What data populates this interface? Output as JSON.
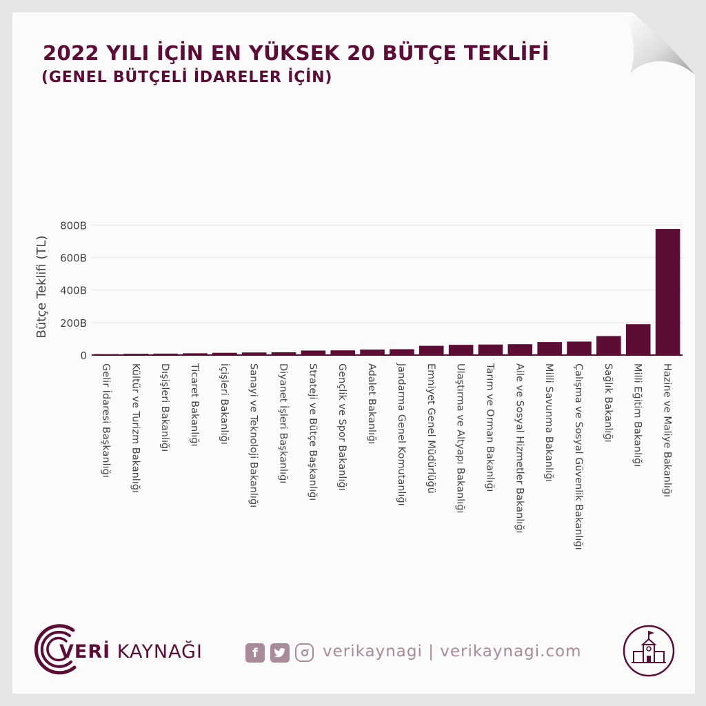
{
  "header": {
    "title": "2022 YILI İÇİN EN YÜKSEK 20 BÜTÇE TEKLİFİ",
    "subtitle": "(GENEL BÜTÇELİ İDARELER İÇİN)"
  },
  "footer": {
    "brand_bold": "VERİ",
    "brand_rest": " KAYNAĞI",
    "website": "verikaynagi | verikaynagi.com",
    "social_icons": [
      "facebook-icon",
      "twitter-icon",
      "instagram-icon"
    ]
  },
  "colors": {
    "bar": "#5c0c35",
    "accent": "#5c0c35",
    "muted": "#a98a9a",
    "grid": "#e6e6e6"
  },
  "chart_data": {
    "type": "bar",
    "ylabel": "Bütçe Teklifi (TL)",
    "xlabel": "",
    "ylim": [
      0,
      840
    ],
    "yticks": [
      0,
      200,
      400,
      600,
      800
    ],
    "ytick_labels": [
      "0",
      "200B",
      "400B",
      "600B",
      "800B"
    ],
    "grid": true,
    "categories": [
      "Gelir İdaresi Başkanlığı",
      "Kültür ve Turizm Bakanlığı",
      "Dışişleri Bakanlığı",
      "Ticaret Bakanlığı",
      "İçişleri Bakanlığı",
      "Sanayi ve Teknoloji Bakanlığı",
      "Diyanet İşleri Başkanlığı",
      "Strateji ve Bütçe Başkanlığı",
      "Gençlik ve Spor Bakanlığı",
      "Adalet Bakanlığı",
      "Jandarma Genel Komutanlığı",
      "Emniyet Genel Müdürlüğü",
      "Ulaştırma ve Altyapı Bakanlığı",
      "Tarım ve Orman Bakanlığı",
      "Aile ve Sosyal Hizmetler Bakanlığı",
      "Milli Savunma Bakanlığı",
      "Çalışma ve Sosyal Güvenlik Bakanlığı",
      "Sağlık Bakanlığı",
      "Milli Eğitim Bakanlığı",
      "Hazine ve Maliye Bakanlığı"
    ],
    "values": [
      6,
      8,
      9,
      11,
      14,
      16,
      17,
      28,
      29,
      34,
      36,
      57,
      63,
      65,
      67,
      80,
      83,
      117,
      190,
      776
    ]
  }
}
